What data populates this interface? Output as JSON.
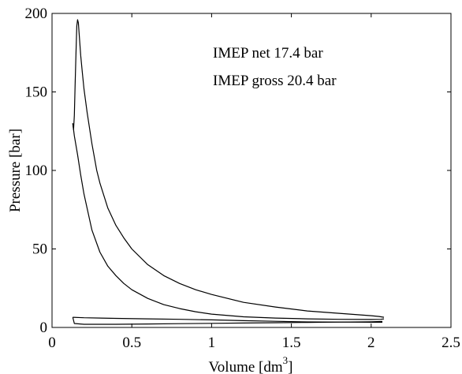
{
  "chart_data": {
    "type": "line",
    "title": "",
    "xlabel": "Volume [dm",
    "xlabel_superscript": "3",
    "xlabel_suffix": "]",
    "ylabel": "Pressure [bar]",
    "xlim": [
      0,
      2.5
    ],
    "ylim": [
      0,
      200
    ],
    "xticks": [
      0,
      0.5,
      1,
      1.5,
      2,
      2.5
    ],
    "xtick_labels": [
      "0",
      "0.5",
      "1",
      "1.5",
      "2",
      "2.5"
    ],
    "yticks": [
      0,
      50,
      100,
      150,
      200
    ],
    "ytick_labels": [
      "0",
      "50",
      "100",
      "150",
      "200"
    ],
    "grid": false,
    "line_color": "#000000",
    "annotations": [
      "IMEP net 17.4 bar",
      "IMEP gross 20.4 bar"
    ],
    "series": [
      {
        "x": [
          0.13,
          0.135,
          0.14,
          0.145,
          0.15,
          0.155,
          0.16,
          0.165,
          0.17,
          0.175,
          0.18,
          0.19,
          0.2,
          0.22,
          0.25,
          0.28,
          0.3,
          0.35,
          0.4,
          0.45,
          0.5,
          0.6,
          0.7,
          0.8,
          0.9,
          1.0,
          1.2,
          1.4,
          1.6,
          1.8,
          2.0,
          2.05,
          2.08
        ],
        "y": [
          130,
          126,
          135,
          155,
          175,
          192,
          196,
          194,
          187,
          180,
          173,
          162,
          152,
          137,
          117,
          100,
          92,
          76,
          65,
          57,
          50,
          40,
          33,
          28,
          24,
          21,
          16,
          13,
          10.5,
          9,
          7.5,
          7,
          6.5
        ]
      },
      {
        "x": [
          2.08,
          2.06,
          2.0,
          1.8,
          1.6,
          1.4,
          1.2,
          1.0,
          0.9,
          0.8,
          0.7,
          0.6,
          0.5,
          0.45,
          0.4,
          0.35,
          0.3,
          0.25,
          0.2,
          0.18,
          0.16,
          0.14,
          0.13
        ],
        "y": [
          5.5,
          5.2,
          5.1,
          5.2,
          5.5,
          6,
          6.8,
          8.5,
          10,
          12,
          14.5,
          18.5,
          24,
          28,
          33,
          39,
          48,
          62,
          85,
          97,
          110,
          122,
          130
        ]
      },
      {
        "x": [
          0.13,
          0.2,
          0.4,
          0.6,
          0.8,
          1.0,
          1.2,
          1.4,
          1.6,
          1.8,
          2.0,
          2.07
        ],
        "y": [
          6.5,
          6.2,
          5.8,
          5.5,
          5.2,
          4.8,
          4.3,
          3.9,
          3.5,
          3.4,
          3.3,
          3.3
        ]
      },
      {
        "x": [
          2.07,
          2.0,
          1.8,
          1.6,
          1.4,
          1.2,
          1.0,
          0.8,
          0.6,
          0.4,
          0.2,
          0.14,
          0.13
        ],
        "y": [
          3.8,
          3.6,
          3.4,
          3.2,
          3.0,
          2.8,
          2.6,
          2.4,
          2.2,
          2.0,
          2.0,
          2.5,
          6.5
        ]
      }
    ]
  }
}
